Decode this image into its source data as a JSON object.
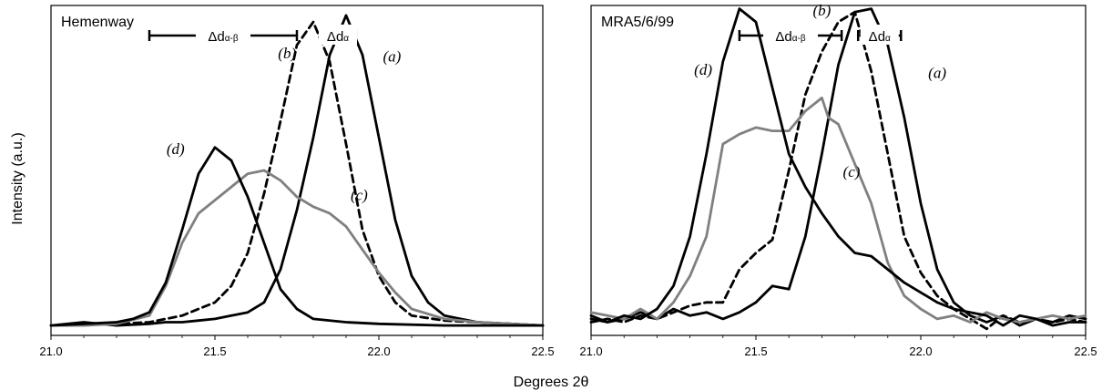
{
  "chart_data": {
    "type": "line",
    "xlabel": "Degrees 2θ",
    "ylabel": "Intensity (a.u.)",
    "xlim": [
      21.0,
      22.5
    ],
    "ylim": [
      0,
      1
    ],
    "x_ticks": [
      "21.0",
      "21.5",
      "22.0",
      "22.5"
    ],
    "grid": false,
    "legend": "none",
    "colors": {
      "black": "#000000",
      "grey": "#808080"
    },
    "scale_bar": {
      "label_a": "Δd",
      "sub_a": "α-β",
      "label_b": "Δd",
      "sub_b": "α"
    },
    "panels": [
      {
        "title": "Hemenway",
        "bar_x": [
          21.3,
          21.75,
          21.82,
          21.93
        ],
        "labels": [
          {
            "text": "(a)",
            "x": 22.04,
            "y": 0.83
          },
          {
            "text": "(b)",
            "x": 21.72,
            "y": 0.84
          },
          {
            "text": "(c)",
            "x": 21.94,
            "y": 0.41
          },
          {
            "text": "(d)",
            "x": 21.38,
            "y": 0.55
          }
        ],
        "series": [
          {
            "key": "a",
            "color": "#000000",
            "dashed": false,
            "x": [
              21.0,
              21.1,
              21.2,
              21.3,
              21.35,
              21.4,
              21.45,
              21.5,
              21.55,
              21.6,
              21.65,
              21.7,
              21.75,
              21.8,
              21.85,
              21.9,
              21.95,
              22.0,
              22.05,
              22.1,
              22.15,
              22.2,
              22.3,
              22.4,
              22.5
            ],
            "y": [
              0.03,
              0.04,
              0.03,
              0.035,
              0.04,
              0.04,
              0.045,
              0.05,
              0.06,
              0.07,
              0.1,
              0.2,
              0.38,
              0.6,
              0.85,
              0.97,
              0.85,
              0.6,
              0.35,
              0.18,
              0.1,
              0.06,
              0.04,
              0.035,
              0.03
            ]
          },
          {
            "key": "b",
            "color": "#000000",
            "dashed": true,
            "x": [
              21.0,
              21.2,
              21.3,
              21.35,
              21.4,
              21.45,
              21.5,
              21.55,
              21.6,
              21.65,
              21.7,
              21.75,
              21.8,
              21.85,
              21.9,
              21.95,
              22.0,
              22.05,
              22.1,
              22.2,
              22.3,
              22.4,
              22.5
            ],
            "y": [
              0.03,
              0.035,
              0.04,
              0.05,
              0.06,
              0.08,
              0.1,
              0.15,
              0.25,
              0.43,
              0.65,
              0.88,
              0.95,
              0.83,
              0.58,
              0.32,
              0.18,
              0.1,
              0.06,
              0.045,
              0.04,
              0.035,
              0.03
            ]
          },
          {
            "key": "c",
            "color": "#808080",
            "dashed": false,
            "x": [
              21.0,
              21.1,
              21.2,
              21.3,
              21.35,
              21.4,
              21.45,
              21.5,
              21.55,
              21.6,
              21.65,
              21.7,
              21.75,
              21.8,
              21.85,
              21.9,
              21.95,
              22.0,
              22.05,
              22.1,
              22.2,
              22.3,
              22.4,
              22.5
            ],
            "y": [
              0.03,
              0.03,
              0.035,
              0.06,
              0.15,
              0.28,
              0.37,
              0.41,
              0.45,
              0.49,
              0.5,
              0.47,
              0.42,
              0.39,
              0.37,
              0.33,
              0.26,
              0.19,
              0.13,
              0.08,
              0.05,
              0.04,
              0.035,
              0.03
            ]
          },
          {
            "key": "d",
            "color": "#000000",
            "dashed": false,
            "x": [
              21.0,
              21.1,
              21.2,
              21.25,
              21.3,
              21.35,
              21.4,
              21.45,
              21.5,
              21.55,
              21.6,
              21.65,
              21.7,
              21.75,
              21.8,
              21.9,
              22.0,
              22.2,
              22.4,
              22.5
            ],
            "y": [
              0.03,
              0.035,
              0.04,
              0.05,
              0.07,
              0.16,
              0.32,
              0.49,
              0.57,
              0.53,
              0.42,
              0.28,
              0.14,
              0.08,
              0.05,
              0.04,
              0.035,
              0.03,
              0.03,
              0.03
            ]
          }
        ]
      },
      {
        "title": "MRA5/6/99",
        "bar_x": [
          21.45,
          21.76,
          21.81,
          21.94
        ],
        "labels": [
          {
            "text": "(a)",
            "x": 22.05,
            "y": 0.78
          },
          {
            "text": "(b)",
            "x": 21.7,
            "y": 0.97
          },
          {
            "text": "(c)",
            "x": 21.79,
            "y": 0.48
          },
          {
            "text": "(d)",
            "x": 21.34,
            "y": 0.79
          }
        ],
        "series": [
          {
            "key": "a",
            "color": "#000000",
            "dashed": false,
            "x": [
              21.0,
              21.05,
              21.1,
              21.15,
              21.2,
              21.25,
              21.3,
              21.35,
              21.4,
              21.45,
              21.5,
              21.55,
              21.6,
              21.65,
              21.7,
              21.75,
              21.8,
              21.85,
              21.9,
              21.95,
              22.0,
              22.05,
              22.1,
              22.15,
              22.2,
              22.25,
              22.3,
              22.35,
              22.4,
              22.45,
              22.5
            ],
            "y": [
              0.06,
              0.04,
              0.05,
              0.07,
              0.05,
              0.08,
              0.06,
              0.07,
              0.05,
              0.07,
              0.1,
              0.15,
              0.14,
              0.3,
              0.55,
              0.82,
              0.98,
              0.99,
              0.88,
              0.66,
              0.4,
              0.2,
              0.1,
              0.06,
              0.04,
              0.06,
              0.03,
              0.05,
              0.04,
              0.06,
              0.05
            ]
          },
          {
            "key": "b",
            "color": "#000000",
            "dashed": true,
            "x": [
              21.0,
              21.05,
              21.1,
              21.15,
              21.2,
              21.25,
              21.3,
              21.35,
              21.4,
              21.45,
              21.5,
              21.55,
              21.6,
              21.65,
              21.7,
              21.75,
              21.8,
              21.85,
              21.9,
              21.95,
              22.0,
              22.05,
              22.1,
              22.15,
              22.2,
              22.25,
              22.3,
              22.35,
              22.4,
              22.45,
              22.5
            ],
            "y": [
              0.04,
              0.05,
              0.04,
              0.06,
              0.05,
              0.07,
              0.09,
              0.1,
              0.1,
              0.2,
              0.25,
              0.29,
              0.5,
              0.73,
              0.86,
              0.95,
              0.98,
              0.8,
              0.55,
              0.3,
              0.19,
              0.12,
              0.08,
              0.05,
              0.02,
              0.06,
              0.04,
              0.05,
              0.04,
              0.05,
              0.04
            ]
          },
          {
            "key": "c",
            "color": "#808080",
            "dashed": false,
            "x": [
              21.0,
              21.05,
              21.1,
              21.15,
              21.2,
              21.25,
              21.3,
              21.35,
              21.4,
              21.45,
              21.5,
              21.55,
              21.6,
              21.65,
              21.7,
              21.72,
              21.75,
              21.8,
              21.85,
              21.9,
              21.95,
              22.0,
              22.05,
              22.1,
              22.15,
              22.2,
              22.25,
              22.3,
              22.35,
              22.4,
              22.45,
              22.5
            ],
            "y": [
              0.07,
              0.06,
              0.05,
              0.08,
              0.05,
              0.1,
              0.18,
              0.3,
              0.58,
              0.61,
              0.63,
              0.62,
              0.62,
              0.68,
              0.72,
              0.66,
              0.64,
              0.52,
              0.4,
              0.22,
              0.12,
              0.08,
              0.05,
              0.06,
              0.04,
              0.07,
              0.05,
              0.04,
              0.05,
              0.06,
              0.05,
              0.06
            ]
          },
          {
            "key": "d",
            "color": "#000000",
            "dashed": false,
            "x": [
              21.0,
              21.05,
              21.1,
              21.15,
              21.2,
              21.25,
              21.3,
              21.35,
              21.4,
              21.45,
              21.5,
              21.55,
              21.6,
              21.65,
              21.7,
              21.75,
              21.8,
              21.85,
              21.9,
              21.95,
              22.0,
              22.05,
              22.1,
              22.15,
              22.2,
              22.25,
              22.3,
              22.35,
              22.4,
              22.45,
              22.5
            ],
            "y": [
              0.05,
              0.04,
              0.06,
              0.05,
              0.08,
              0.15,
              0.3,
              0.55,
              0.83,
              0.99,
              0.95,
              0.75,
              0.55,
              0.45,
              0.37,
              0.3,
              0.25,
              0.24,
              0.2,
              0.16,
              0.13,
              0.1,
              0.08,
              0.07,
              0.06,
              0.03,
              0.06,
              0.05,
              0.03,
              0.04,
              0.04
            ]
          }
        ]
      }
    ]
  }
}
